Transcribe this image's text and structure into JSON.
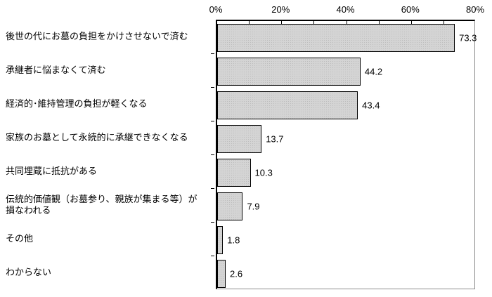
{
  "chart_data": {
    "type": "bar",
    "orientation": "horizontal",
    "title": "",
    "xlabel": "",
    "ylabel": "",
    "categories": [
      "後世の代にお墓の負担をかけさせないで済む",
      "承継者に悩まなくて済む",
      "経済的･維持管理の負担が軽くなる",
      "家族のお墓として永続的に承継できなくなる",
      "共同埋蔵に抵抗がある",
      "伝統的価値観（お墓参り、親族が集まる等）が\n損なわれる",
      "その他",
      "わからない"
    ],
    "values": [
      73.3,
      44.2,
      43.4,
      13.7,
      10.3,
      7.9,
      1.8,
      2.6
    ],
    "value_decimals": 1,
    "xlim": [
      0,
      80
    ],
    "x_tick_labels": [
      "0%",
      "20%",
      "40%",
      "60%",
      "80%"
    ],
    "x_tick_values": [
      0,
      20,
      40,
      60,
      80
    ],
    "minor_tick_step": 10,
    "grid": false,
    "legend": null,
    "colors": {
      "bar_fill": "#d4d4d4",
      "bar_dot": "#bdbdbd",
      "bar_border": "#000000",
      "axis_color": "#000000",
      "plot_border": "#8c8c8c",
      "text": "#000000",
      "background": "#ffffff"
    }
  }
}
